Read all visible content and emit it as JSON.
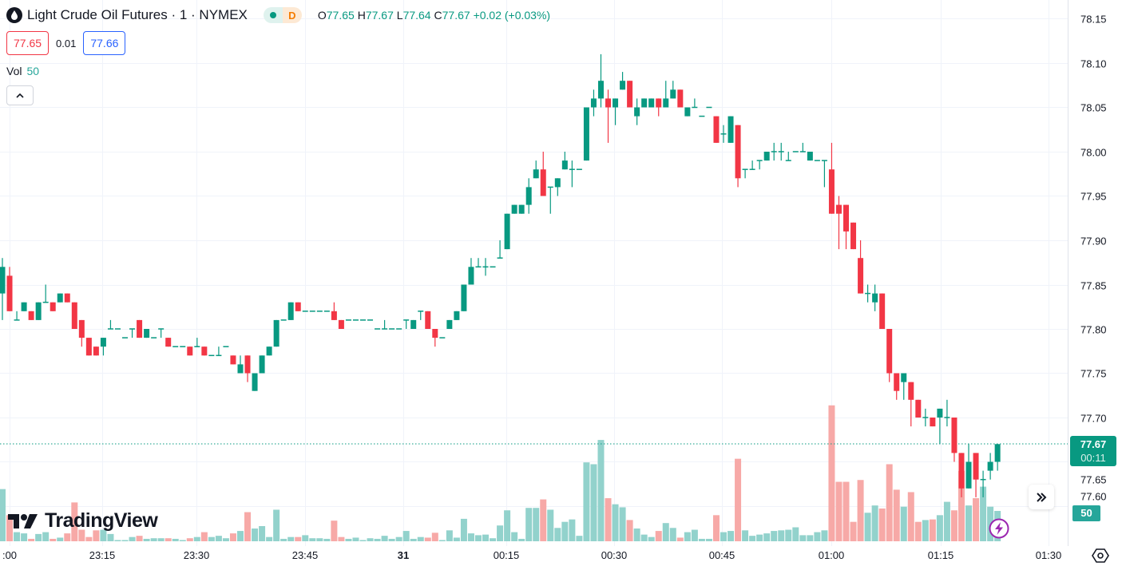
{
  "header": {
    "title": "Light Crude Oil Futures · 1 · NYMEX",
    "status_badge": "D",
    "ohlc": {
      "o_label": "O",
      "o": "77.65",
      "h_label": "H",
      "h": "77.67",
      "l_label": "L",
      "l": "77.64",
      "c_label": "C",
      "c": "77.67",
      "change": "+0.02 (+0.03%)"
    }
  },
  "trade": {
    "sell_price": "77.65",
    "spread": "0.01",
    "buy_price": "77.66"
  },
  "volume_legend": {
    "label": "Vol",
    "value": "50"
  },
  "price_axis": {
    "current_price": "77.67",
    "countdown": "00:11",
    "volume_badge": "50"
  },
  "branding": {
    "logo_text": "TradingView"
  },
  "colors": {
    "up": "#089981",
    "down": "#f23645",
    "vol_up": "#92d2cc",
    "vol_down": "#f7a9a7",
    "grid": "#f0f3fa"
  },
  "chart_data": {
    "type": "candlestick",
    "title": "Light Crude Oil Futures · 1 · NYMEX",
    "interval": "1 minute",
    "y_ticks": [
      "78.15",
      "78.10",
      "78.05",
      "78.00",
      "77.95",
      "77.90",
      "77.85",
      "77.80",
      "77.75",
      "77.70",
      "77.65",
      "77.60"
    ],
    "x_ticks": [
      ":00",
      "23:15",
      "23:30",
      "23:45",
      "31",
      "00:15",
      "00:30",
      "00:45",
      "01:00",
      "01:15",
      "01:30"
    ],
    "last_price": 77.67,
    "columns": [
      "open",
      "high",
      "low",
      "close",
      "volume"
    ],
    "candles": [
      [
        77.84,
        77.88,
        77.81,
        77.87,
        86
      ],
      [
        77.86,
        77.87,
        77.82,
        77.82,
        43
      ],
      [
        77.81,
        77.82,
        77.81,
        77.81,
        15
      ],
      [
        77.82,
        77.83,
        77.82,
        77.83,
        13
      ],
      [
        77.82,
        77.82,
        77.81,
        77.81,
        4
      ],
      [
        77.81,
        77.83,
        77.81,
        77.83,
        12
      ],
      [
        77.83,
        77.85,
        77.83,
        77.83,
        15
      ],
      [
        77.83,
        77.83,
        77.82,
        77.82,
        4
      ],
      [
        77.83,
        77.84,
        77.83,
        77.84,
        6
      ],
      [
        77.84,
        77.84,
        77.83,
        77.83,
        13
      ],
      [
        77.83,
        77.83,
        77.8,
        77.8,
        64
      ],
      [
        77.81,
        77.81,
        77.78,
        77.79,
        19
      ],
      [
        77.79,
        77.79,
        77.77,
        77.77,
        7
      ],
      [
        77.78,
        77.78,
        77.77,
        77.77,
        18
      ],
      [
        77.78,
        77.79,
        77.77,
        77.79,
        19
      ],
      [
        77.8,
        77.81,
        77.8,
        77.8,
        12
      ],
      [
        77.8,
        77.8,
        77.8,
        77.8,
        2
      ],
      [
        77.79,
        77.79,
        77.79,
        77.79,
        2
      ],
      [
        77.8,
        77.8,
        77.79,
        77.8,
        7
      ],
      [
        77.81,
        77.81,
        77.79,
        77.79,
        9
      ],
      [
        77.79,
        77.8,
        77.79,
        77.8,
        4
      ],
      [
        77.79,
        77.79,
        77.79,
        77.79,
        5
      ],
      [
        77.8,
        77.8,
        77.79,
        77.8,
        5
      ],
      [
        77.79,
        77.79,
        77.78,
        77.78,
        5
      ],
      [
        77.78,
        77.78,
        77.78,
        77.78,
        4
      ],
      [
        77.78,
        77.78,
        77.78,
        77.78,
        2
      ],
      [
        77.78,
        77.78,
        77.77,
        77.77,
        5
      ],
      [
        77.78,
        77.79,
        77.78,
        77.78,
        7
      ],
      [
        77.78,
        77.78,
        77.77,
        77.77,
        15
      ],
      [
        77.77,
        77.77,
        77.77,
        77.77,
        7
      ],
      [
        77.77,
        77.78,
        77.77,
        77.77,
        9
      ],
      [
        77.78,
        77.78,
        77.78,
        77.78,
        5
      ],
      [
        77.77,
        77.77,
        77.76,
        77.76,
        13
      ],
      [
        77.75,
        77.77,
        77.75,
        77.76,
        17
      ],
      [
        77.77,
        77.77,
        77.74,
        77.75,
        48
      ],
      [
        77.73,
        77.75,
        77.73,
        77.75,
        21
      ],
      [
        77.75,
        77.77,
        77.75,
        77.77,
        25
      ],
      [
        77.77,
        77.78,
        77.77,
        77.78,
        7
      ],
      [
        77.78,
        77.81,
        77.78,
        77.81,
        52
      ],
      [
        77.81,
        77.81,
        77.81,
        77.81,
        4
      ],
      [
        77.81,
        77.83,
        77.81,
        77.83,
        7
      ],
      [
        77.83,
        77.83,
        77.82,
        77.82,
        7
      ],
      [
        77.82,
        77.82,
        77.82,
        77.82,
        10
      ],
      [
        77.82,
        77.82,
        77.82,
        77.82,
        5
      ],
      [
        77.82,
        77.82,
        77.82,
        77.82,
        5
      ],
      [
        77.82,
        77.82,
        77.82,
        77.82,
        4
      ],
      [
        77.82,
        77.83,
        77.81,
        77.81,
        34
      ],
      [
        77.81,
        77.81,
        77.8,
        77.8,
        7
      ],
      [
        77.81,
        77.81,
        77.81,
        77.81,
        4
      ],
      [
        77.81,
        77.81,
        77.81,
        77.81,
        6
      ],
      [
        77.81,
        77.81,
        77.81,
        77.81,
        2
      ],
      [
        77.81,
        77.81,
        77.81,
        77.81,
        5
      ],
      [
        77.8,
        77.8,
        77.8,
        77.8,
        4
      ],
      [
        77.8,
        77.81,
        77.8,
        77.8,
        9
      ],
      [
        77.8,
        77.8,
        77.8,
        77.8,
        4
      ],
      [
        77.8,
        77.8,
        77.8,
        77.8,
        7
      ],
      [
        77.81,
        77.81,
        77.8,
        77.81,
        17
      ],
      [
        77.8,
        77.81,
        77.8,
        77.81,
        4
      ],
      [
        77.82,
        77.82,
        77.81,
        77.82,
        7
      ],
      [
        77.82,
        77.82,
        77.8,
        77.8,
        6
      ],
      [
        77.8,
        77.8,
        77.78,
        77.79,
        14
      ],
      [
        77.79,
        77.79,
        77.79,
        77.79,
        2
      ],
      [
        77.8,
        77.81,
        77.8,
        77.81,
        18
      ],
      [
        77.81,
        77.82,
        77.81,
        77.82,
        6
      ],
      [
        77.82,
        77.85,
        77.82,
        77.85,
        37
      ],
      [
        77.85,
        77.88,
        77.85,
        77.87,
        13
      ],
      [
        77.87,
        77.88,
        77.87,
        77.87,
        10
      ],
      [
        77.87,
        77.88,
        77.86,
        77.87,
        11
      ],
      [
        77.87,
        77.87,
        77.87,
        77.87,
        5
      ],
      [
        77.88,
        77.9,
        77.88,
        77.88,
        26
      ],
      [
        77.89,
        77.93,
        77.89,
        77.93,
        51
      ],
      [
        77.93,
        77.94,
        77.93,
        77.94,
        15
      ],
      [
        77.93,
        77.94,
        77.93,
        77.94,
        4
      ],
      [
        77.94,
        77.97,
        77.93,
        77.96,
        55
      ],
      [
        77.97,
        77.99,
        77.97,
        77.98,
        55
      ],
      [
        77.98,
        78.0,
        77.95,
        77.95,
        69
      ],
      [
        77.96,
        77.96,
        77.93,
        77.96,
        52
      ],
      [
        77.96,
        77.97,
        77.95,
        77.97,
        22
      ],
      [
        77.98,
        78.0,
        77.98,
        77.99,
        32
      ],
      [
        77.98,
        77.99,
        77.96,
        77.98,
        36
      ],
      [
        77.98,
        77.98,
        77.98,
        77.98,
        9
      ],
      [
        77.99,
        78.05,
        77.99,
        78.05,
        130
      ],
      [
        78.05,
        78.07,
        78.04,
        78.06,
        127
      ],
      [
        78.06,
        78.11,
        78.05,
        78.08,
        167
      ],
      [
        78.06,
        78.07,
        78.01,
        78.05,
        71
      ],
      [
        78.05,
        78.06,
        78.03,
        78.06,
        61
      ],
      [
        78.07,
        78.09,
        78.07,
        78.08,
        56
      ],
      [
        78.08,
        78.08,
        78.05,
        78.05,
        35
      ],
      [
        78.04,
        78.06,
        78.03,
        78.05,
        21
      ],
      [
        78.05,
        78.06,
        78.05,
        78.06,
        11
      ],
      [
        78.05,
        78.06,
        78.05,
        78.06,
        7
      ],
      [
        78.06,
        78.06,
        78.04,
        78.05,
        17
      ],
      [
        78.05,
        78.08,
        78.05,
        78.06,
        30
      ],
      [
        78.06,
        78.08,
        78.06,
        78.07,
        22
      ],
      [
        78.07,
        78.07,
        78.05,
        78.05,
        6
      ],
      [
        78.04,
        78.05,
        78.04,
        78.05,
        15
      ],
      [
        78.05,
        78.06,
        78.05,
        78.05,
        19
      ],
      [
        78.04,
        78.04,
        78.04,
        78.04,
        4
      ],
      [
        78.05,
        78.05,
        78.05,
        78.05,
        4
      ],
      [
        78.04,
        78.04,
        78.01,
        78.01,
        43
      ],
      [
        78.02,
        78.03,
        78.01,
        78.02,
        15
      ],
      [
        78.01,
        78.04,
        78.01,
        78.04,
        17
      ],
      [
        78.03,
        78.03,
        77.96,
        77.97,
        136
      ],
      [
        77.98,
        77.98,
        77.97,
        77.98,
        18
      ],
      [
        77.98,
        77.99,
        77.98,
        77.98,
        9
      ],
      [
        77.99,
        77.99,
        77.98,
        77.99,
        11
      ],
      [
        77.99,
        78.0,
        77.99,
        78.0,
        13
      ],
      [
        78.0,
        78.01,
        77.99,
        78.0,
        17
      ],
      [
        78.0,
        78.01,
        77.99,
        78.0,
        18
      ],
      [
        77.99,
        78.0,
        77.99,
        77.99,
        19
      ],
      [
        78.0,
        78.0,
        78.0,
        78.0,
        23
      ],
      [
        78.0,
        78.01,
        78.0,
        78.0,
        10
      ],
      [
        77.99,
        78.0,
        77.99,
        78.0,
        10
      ],
      [
        77.99,
        77.99,
        77.99,
        77.99,
        15
      ],
      [
        77.99,
        77.99,
        77.96,
        77.99,
        18
      ],
      [
        77.98,
        78.01,
        77.93,
        77.93,
        224
      ],
      [
        77.94,
        77.95,
        77.89,
        77.93,
        98
      ],
      [
        77.94,
        77.94,
        77.89,
        77.91,
        98
      ],
      [
        77.92,
        77.92,
        77.89,
        77.89,
        32
      ],
      [
        77.88,
        77.9,
        77.84,
        77.84,
        101
      ],
      [
        77.84,
        77.85,
        77.83,
        77.84,
        47
      ],
      [
        77.83,
        77.85,
        77.82,
        77.84,
        59
      ],
      [
        77.84,
        77.84,
        77.8,
        77.8,
        54
      ],
      [
        77.8,
        77.8,
        77.74,
        77.75,
        127
      ],
      [
        77.75,
        77.75,
        77.72,
        77.73,
        85
      ],
      [
        77.74,
        77.75,
        77.72,
        77.75,
        57
      ],
      [
        77.74,
        77.74,
        77.69,
        77.72,
        81
      ],
      [
        77.72,
        77.72,
        77.7,
        77.7,
        32
      ],
      [
        77.7,
        77.71,
        77.69,
        77.7,
        35
      ],
      [
        77.7,
        77.7,
        77.69,
        77.69,
        36
      ],
      [
        77.7,
        77.71,
        77.67,
        77.71,
        43
      ],
      [
        77.7,
        77.72,
        77.69,
        77.7,
        65
      ],
      [
        77.7,
        77.7,
        77.65,
        77.66,
        51
      ],
      [
        77.66,
        77.66,
        77.61,
        77.62,
        116
      ],
      [
        77.62,
        77.67,
        77.62,
        77.65,
        59
      ],
      [
        77.66,
        77.66,
        77.61,
        77.63,
        71
      ],
      [
        77.63,
        77.64,
        77.61,
        77.63,
        90
      ],
      [
        77.64,
        77.66,
        77.63,
        77.65,
        57
      ],
      [
        77.65,
        77.67,
        77.64,
        77.67,
        50
      ]
    ]
  }
}
